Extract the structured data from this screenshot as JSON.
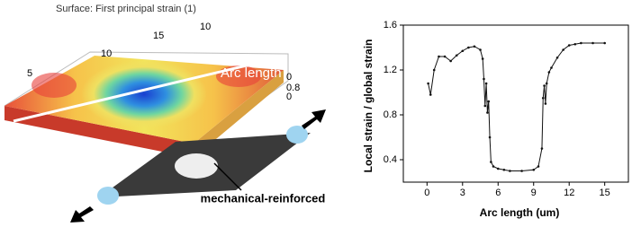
{
  "illustration": {
    "title": "Surface: First principal strain (1)",
    "arc_label": "Arc length",
    "axis_labels": [
      "5",
      "10",
      "15",
      "10",
      "0",
      "0.8",
      "0"
    ],
    "annotation": "mechanical-reinforced"
  },
  "chart_data": {
    "type": "line",
    "x_label": "Arc length (um)",
    "y_label": "Local strain / global strain",
    "xlim": [
      -2,
      17
    ],
    "xticks": [
      0,
      3,
      6,
      9,
      12,
      15
    ],
    "ylim": [
      0.2,
      1.6
    ],
    "yticks": [
      0.4,
      0.8,
      1.2,
      1.6
    ],
    "series": [
      {
        "color": "#111111",
        "x": [
          0.1,
          0.3,
          0.6,
          1.0,
          1.5,
          2.0,
          2.5,
          3.0,
          3.5,
          4.0,
          4.5,
          4.7,
          4.8,
          4.9,
          5.0,
          5.1,
          5.2,
          5.3,
          5.4,
          5.6,
          6.0,
          6.5,
          7.0,
          8.0,
          9.0,
          9.4,
          9.7,
          9.8,
          9.9,
          10.0,
          10.1,
          10.3,
          10.5,
          11.0,
          11.5,
          12.0,
          12.5,
          13.0,
          14.0,
          15.0
        ],
        "values": [
          1.08,
          0.98,
          1.2,
          1.32,
          1.32,
          1.28,
          1.33,
          1.37,
          1.4,
          1.41,
          1.38,
          1.3,
          1.12,
          0.88,
          1.08,
          0.82,
          0.92,
          0.6,
          0.38,
          0.34,
          0.32,
          0.31,
          0.3,
          0.3,
          0.31,
          0.34,
          0.5,
          0.95,
          1.06,
          0.9,
          1.08,
          1.18,
          1.22,
          1.31,
          1.38,
          1.42,
          1.43,
          1.44,
          1.44,
          1.44
        ]
      }
    ]
  }
}
